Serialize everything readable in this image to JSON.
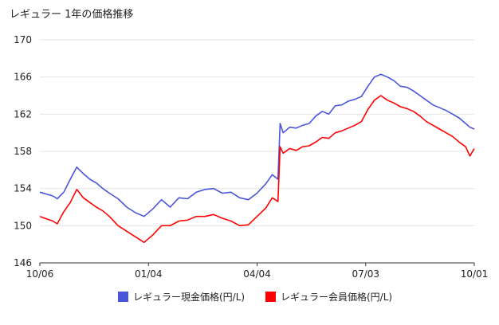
{
  "chart_data": {
    "type": "line",
    "title": "レギュラー 1年の価格推移",
    "xlabel": "",
    "ylabel": "",
    "ylim": [
      146,
      170
    ],
    "yticks": [
      146,
      150,
      154,
      158,
      162,
      166,
      170
    ],
    "xticks": [
      "10/06",
      "01/04",
      "04/04",
      "07/03",
      "10/01"
    ],
    "grid": true,
    "legend_position": "bottom",
    "series": [
      {
        "name": "レギュラー現金価格(円/L)",
        "color": "#4a55dc",
        "points": [
          [
            0,
            153.6
          ],
          [
            0.03,
            153.2
          ],
          [
            0.04,
            152.9
          ],
          [
            0.055,
            153.6
          ],
          [
            0.07,
            155.0
          ],
          [
            0.085,
            156.3
          ],
          [
            0.1,
            155.6
          ],
          [
            0.115,
            155.0
          ],
          [
            0.13,
            154.6
          ],
          [
            0.145,
            154.0
          ],
          [
            0.16,
            153.5
          ],
          [
            0.18,
            152.9
          ],
          [
            0.2,
            152.0
          ],
          [
            0.22,
            151.4
          ],
          [
            0.24,
            151.0
          ],
          [
            0.26,
            151.8
          ],
          [
            0.28,
            152.8
          ],
          [
            0.3,
            152.0
          ],
          [
            0.32,
            153.0
          ],
          [
            0.34,
            152.9
          ],
          [
            0.36,
            153.6
          ],
          [
            0.38,
            153.9
          ],
          [
            0.4,
            154.0
          ],
          [
            0.42,
            153.5
          ],
          [
            0.44,
            153.6
          ],
          [
            0.46,
            153.0
          ],
          [
            0.48,
            152.8
          ],
          [
            0.5,
            153.5
          ],
          [
            0.52,
            154.5
          ],
          [
            0.535,
            155.5
          ],
          [
            0.548,
            155.0
          ],
          [
            0.553,
            161.0
          ],
          [
            0.56,
            160.0
          ],
          [
            0.575,
            160.6
          ],
          [
            0.59,
            160.5
          ],
          [
            0.605,
            160.8
          ],
          [
            0.62,
            161.0
          ],
          [
            0.635,
            161.8
          ],
          [
            0.65,
            162.3
          ],
          [
            0.665,
            162.0
          ],
          [
            0.68,
            162.9
          ],
          [
            0.695,
            163.0
          ],
          [
            0.71,
            163.4
          ],
          [
            0.725,
            163.6
          ],
          [
            0.74,
            163.9
          ],
          [
            0.755,
            165.0
          ],
          [
            0.77,
            166.0
          ],
          [
            0.785,
            166.3
          ],
          [
            0.8,
            166.0
          ],
          [
            0.815,
            165.6
          ],
          [
            0.83,
            165.0
          ],
          [
            0.845,
            164.9
          ],
          [
            0.86,
            164.5
          ],
          [
            0.875,
            164.0
          ],
          [
            0.89,
            163.5
          ],
          [
            0.905,
            163.0
          ],
          [
            0.92,
            162.7
          ],
          [
            0.935,
            162.4
          ],
          [
            0.95,
            162.0
          ],
          [
            0.965,
            161.6
          ],
          [
            0.98,
            161.0
          ],
          [
            0.99,
            160.6
          ],
          [
            1.0,
            160.4
          ]
        ]
      },
      {
        "name": "レギュラー会員価格(円/L)",
        "color": "#ff0000",
        "points": [
          [
            0,
            151.0
          ],
          [
            0.03,
            150.5
          ],
          [
            0.04,
            150.2
          ],
          [
            0.055,
            151.5
          ],
          [
            0.07,
            152.5
          ],
          [
            0.085,
            153.9
          ],
          [
            0.1,
            153.0
          ],
          [
            0.115,
            152.5
          ],
          [
            0.13,
            152.0
          ],
          [
            0.145,
            151.6
          ],
          [
            0.16,
            151.0
          ],
          [
            0.18,
            150.0
          ],
          [
            0.2,
            149.4
          ],
          [
            0.22,
            148.8
          ],
          [
            0.24,
            148.2
          ],
          [
            0.26,
            149.0
          ],
          [
            0.28,
            150.0
          ],
          [
            0.3,
            150.0
          ],
          [
            0.32,
            150.5
          ],
          [
            0.34,
            150.6
          ],
          [
            0.36,
            151.0
          ],
          [
            0.38,
            151.0
          ],
          [
            0.4,
            151.2
          ],
          [
            0.42,
            150.8
          ],
          [
            0.44,
            150.5
          ],
          [
            0.46,
            150.0
          ],
          [
            0.48,
            150.1
          ],
          [
            0.5,
            151.0
          ],
          [
            0.52,
            151.9
          ],
          [
            0.535,
            153.0
          ],
          [
            0.548,
            152.6
          ],
          [
            0.553,
            158.5
          ],
          [
            0.56,
            157.8
          ],
          [
            0.575,
            158.3
          ],
          [
            0.59,
            158.1
          ],
          [
            0.605,
            158.5
          ],
          [
            0.62,
            158.6
          ],
          [
            0.635,
            159.0
          ],
          [
            0.65,
            159.5
          ],
          [
            0.665,
            159.4
          ],
          [
            0.68,
            160.0
          ],
          [
            0.695,
            160.2
          ],
          [
            0.71,
            160.5
          ],
          [
            0.725,
            160.8
          ],
          [
            0.74,
            161.2
          ],
          [
            0.755,
            162.5
          ],
          [
            0.77,
            163.5
          ],
          [
            0.785,
            164.0
          ],
          [
            0.8,
            163.5
          ],
          [
            0.815,
            163.2
          ],
          [
            0.83,
            162.8
          ],
          [
            0.845,
            162.6
          ],
          [
            0.86,
            162.3
          ],
          [
            0.875,
            161.8
          ],
          [
            0.89,
            161.2
          ],
          [
            0.905,
            160.8
          ],
          [
            0.92,
            160.4
          ],
          [
            0.935,
            160.0
          ],
          [
            0.95,
            159.6
          ],
          [
            0.965,
            159.0
          ],
          [
            0.98,
            158.5
          ],
          [
            0.99,
            157.5
          ],
          [
            1.0,
            158.3
          ]
        ]
      }
    ]
  }
}
